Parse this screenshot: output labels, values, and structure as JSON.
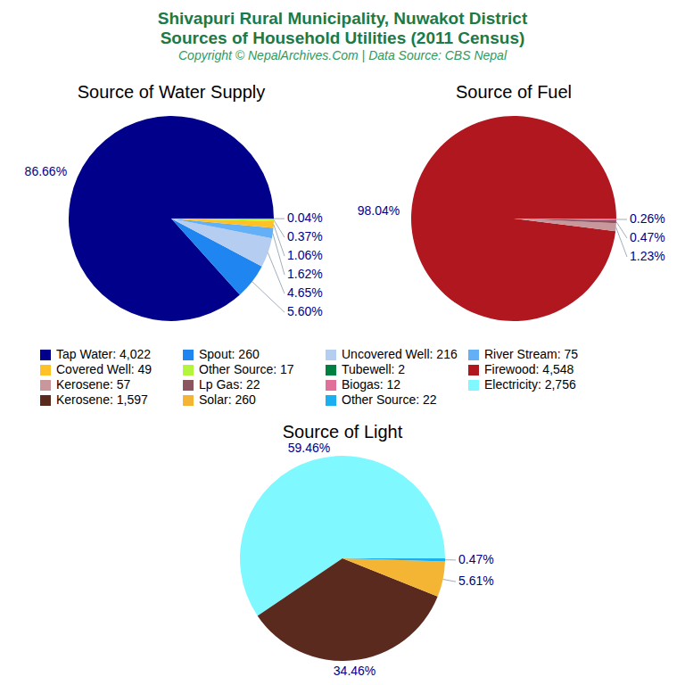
{
  "title": [
    "Shivapuri Rural Municipality, Nuwakot District",
    "Sources of Household Utilities (2011 Census)"
  ],
  "subtitle": "Copyright © NepalArchives.Com | Data Source: CBS Nepal",
  "chart_data": [
    {
      "type": "pie",
      "title": "Source of Water Supply",
      "categories": [
        "Tap Water: 4,022",
        "Spout: 260",
        "Uncovered Well: 216",
        "River Stream: 75",
        "Covered Well: 49",
        "Other Source: 17",
        "Tubewell: 2"
      ],
      "values": [
        86.66,
        5.6,
        4.65,
        1.62,
        1.06,
        0.37,
        0.04
      ],
      "value_labels": [
        "86.66%",
        "5.60%",
        "4.65%",
        "1.62%",
        "1.06%",
        "0.37%",
        "0.04%"
      ],
      "colors": [
        "#00008b",
        "#1f85f0",
        "#b5cdf0",
        "#64b0f6",
        "#ffc125",
        "#b3f53c",
        "#008040"
      ],
      "data_labels": true
    },
    {
      "type": "pie",
      "title": "Source of Fuel",
      "categories": [
        "Firewood: 4,548",
        "Kerosene: 57",
        "Lp Gas: 22",
        "Biogas: 12"
      ],
      "values": [
        98.04,
        1.23,
        0.47,
        0.26
      ],
      "value_labels": [
        "98.04%",
        "1.23%",
        "0.47%",
        "0.26%"
      ],
      "colors": [
        "#b0171f",
        "#c8979c",
        "#8b5560",
        "#e0709a"
      ],
      "data_labels": true
    },
    {
      "type": "pie",
      "title": "Source of Light",
      "categories": [
        "Electricity: 2,756",
        "Kerosene: 1,597",
        "Solar: 260",
        "Other Source: 22"
      ],
      "values": [
        59.46,
        34.46,
        5.61,
        0.47
      ],
      "value_labels": [
        "59.46%",
        "34.46%",
        "5.61%",
        "0.47%"
      ],
      "colors": [
        "#7ff8ff",
        "#5a2a1e",
        "#f5b534",
        "#1ab0f0"
      ],
      "data_labels": true
    }
  ]
}
